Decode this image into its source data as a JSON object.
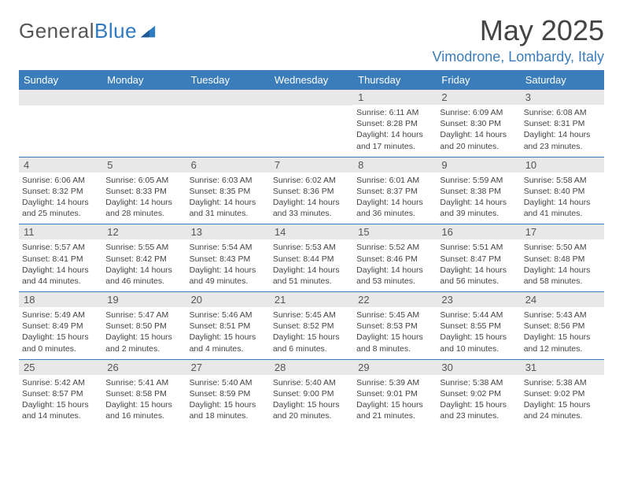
{
  "logo": {
    "text1": "General",
    "text2": "Blue"
  },
  "title": "May 2025",
  "location": "Vimodrone, Lombardy, Italy",
  "weekdays": [
    "Sunday",
    "Monday",
    "Tuesday",
    "Wednesday",
    "Thursday",
    "Friday",
    "Saturday"
  ],
  "colors": {
    "header_bg": "#3b7dbb",
    "band_bg": "#e8e8e8",
    "rule": "#3b7dbb",
    "logo_blue": "#2f7ac0"
  },
  "weeks": [
    [
      null,
      null,
      null,
      null,
      {
        "n": "1",
        "sr": "Sunrise: 6:11 AM",
        "ss": "Sunset: 8:28 PM",
        "d1": "Daylight: 14 hours",
        "d2": "and 17 minutes."
      },
      {
        "n": "2",
        "sr": "Sunrise: 6:09 AM",
        "ss": "Sunset: 8:30 PM",
        "d1": "Daylight: 14 hours",
        "d2": "and 20 minutes."
      },
      {
        "n": "3",
        "sr": "Sunrise: 6:08 AM",
        "ss": "Sunset: 8:31 PM",
        "d1": "Daylight: 14 hours",
        "d2": "and 23 minutes."
      }
    ],
    [
      {
        "n": "4",
        "sr": "Sunrise: 6:06 AM",
        "ss": "Sunset: 8:32 PM",
        "d1": "Daylight: 14 hours",
        "d2": "and 25 minutes."
      },
      {
        "n": "5",
        "sr": "Sunrise: 6:05 AM",
        "ss": "Sunset: 8:33 PM",
        "d1": "Daylight: 14 hours",
        "d2": "and 28 minutes."
      },
      {
        "n": "6",
        "sr": "Sunrise: 6:03 AM",
        "ss": "Sunset: 8:35 PM",
        "d1": "Daylight: 14 hours",
        "d2": "and 31 minutes."
      },
      {
        "n": "7",
        "sr": "Sunrise: 6:02 AM",
        "ss": "Sunset: 8:36 PM",
        "d1": "Daylight: 14 hours",
        "d2": "and 33 minutes."
      },
      {
        "n": "8",
        "sr": "Sunrise: 6:01 AM",
        "ss": "Sunset: 8:37 PM",
        "d1": "Daylight: 14 hours",
        "d2": "and 36 minutes."
      },
      {
        "n": "9",
        "sr": "Sunrise: 5:59 AM",
        "ss": "Sunset: 8:38 PM",
        "d1": "Daylight: 14 hours",
        "d2": "and 39 minutes."
      },
      {
        "n": "10",
        "sr": "Sunrise: 5:58 AM",
        "ss": "Sunset: 8:40 PM",
        "d1": "Daylight: 14 hours",
        "d2": "and 41 minutes."
      }
    ],
    [
      {
        "n": "11",
        "sr": "Sunrise: 5:57 AM",
        "ss": "Sunset: 8:41 PM",
        "d1": "Daylight: 14 hours",
        "d2": "and 44 minutes."
      },
      {
        "n": "12",
        "sr": "Sunrise: 5:55 AM",
        "ss": "Sunset: 8:42 PM",
        "d1": "Daylight: 14 hours",
        "d2": "and 46 minutes."
      },
      {
        "n": "13",
        "sr": "Sunrise: 5:54 AM",
        "ss": "Sunset: 8:43 PM",
        "d1": "Daylight: 14 hours",
        "d2": "and 49 minutes."
      },
      {
        "n": "14",
        "sr": "Sunrise: 5:53 AM",
        "ss": "Sunset: 8:44 PM",
        "d1": "Daylight: 14 hours",
        "d2": "and 51 minutes."
      },
      {
        "n": "15",
        "sr": "Sunrise: 5:52 AM",
        "ss": "Sunset: 8:46 PM",
        "d1": "Daylight: 14 hours",
        "d2": "and 53 minutes."
      },
      {
        "n": "16",
        "sr": "Sunrise: 5:51 AM",
        "ss": "Sunset: 8:47 PM",
        "d1": "Daylight: 14 hours",
        "d2": "and 56 minutes."
      },
      {
        "n": "17",
        "sr": "Sunrise: 5:50 AM",
        "ss": "Sunset: 8:48 PM",
        "d1": "Daylight: 14 hours",
        "d2": "and 58 minutes."
      }
    ],
    [
      {
        "n": "18",
        "sr": "Sunrise: 5:49 AM",
        "ss": "Sunset: 8:49 PM",
        "d1": "Daylight: 15 hours",
        "d2": "and 0 minutes."
      },
      {
        "n": "19",
        "sr": "Sunrise: 5:47 AM",
        "ss": "Sunset: 8:50 PM",
        "d1": "Daylight: 15 hours",
        "d2": "and 2 minutes."
      },
      {
        "n": "20",
        "sr": "Sunrise: 5:46 AM",
        "ss": "Sunset: 8:51 PM",
        "d1": "Daylight: 15 hours",
        "d2": "and 4 minutes."
      },
      {
        "n": "21",
        "sr": "Sunrise: 5:45 AM",
        "ss": "Sunset: 8:52 PM",
        "d1": "Daylight: 15 hours",
        "d2": "and 6 minutes."
      },
      {
        "n": "22",
        "sr": "Sunrise: 5:45 AM",
        "ss": "Sunset: 8:53 PM",
        "d1": "Daylight: 15 hours",
        "d2": "and 8 minutes."
      },
      {
        "n": "23",
        "sr": "Sunrise: 5:44 AM",
        "ss": "Sunset: 8:55 PM",
        "d1": "Daylight: 15 hours",
        "d2": "and 10 minutes."
      },
      {
        "n": "24",
        "sr": "Sunrise: 5:43 AM",
        "ss": "Sunset: 8:56 PM",
        "d1": "Daylight: 15 hours",
        "d2": "and 12 minutes."
      }
    ],
    [
      {
        "n": "25",
        "sr": "Sunrise: 5:42 AM",
        "ss": "Sunset: 8:57 PM",
        "d1": "Daylight: 15 hours",
        "d2": "and 14 minutes."
      },
      {
        "n": "26",
        "sr": "Sunrise: 5:41 AM",
        "ss": "Sunset: 8:58 PM",
        "d1": "Daylight: 15 hours",
        "d2": "and 16 minutes."
      },
      {
        "n": "27",
        "sr": "Sunrise: 5:40 AM",
        "ss": "Sunset: 8:59 PM",
        "d1": "Daylight: 15 hours",
        "d2": "and 18 minutes."
      },
      {
        "n": "28",
        "sr": "Sunrise: 5:40 AM",
        "ss": "Sunset: 9:00 PM",
        "d1": "Daylight: 15 hours",
        "d2": "and 20 minutes."
      },
      {
        "n": "29",
        "sr": "Sunrise: 5:39 AM",
        "ss": "Sunset: 9:01 PM",
        "d1": "Daylight: 15 hours",
        "d2": "and 21 minutes."
      },
      {
        "n": "30",
        "sr": "Sunrise: 5:38 AM",
        "ss": "Sunset: 9:02 PM",
        "d1": "Daylight: 15 hours",
        "d2": "and 23 minutes."
      },
      {
        "n": "31",
        "sr": "Sunrise: 5:38 AM",
        "ss": "Sunset: 9:02 PM",
        "d1": "Daylight: 15 hours",
        "d2": "and 24 minutes."
      }
    ]
  ]
}
